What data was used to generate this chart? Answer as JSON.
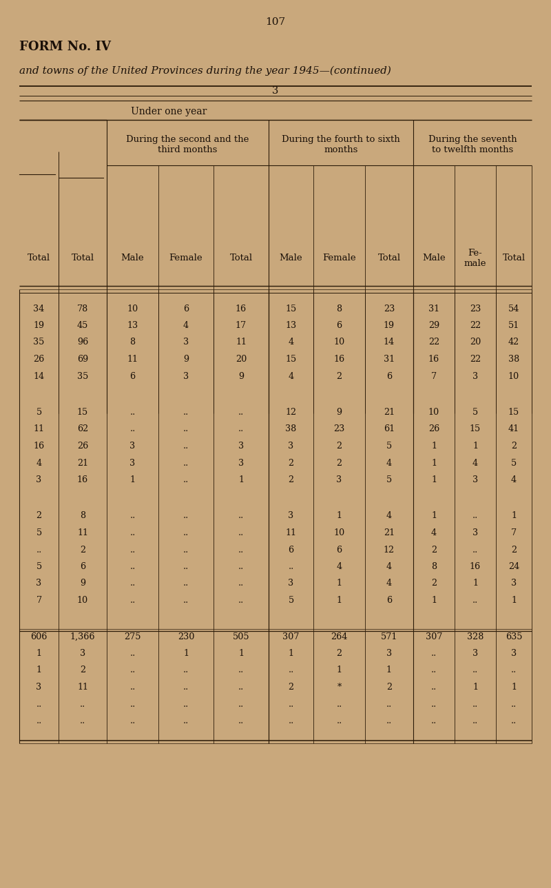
{
  "page_number": "107",
  "form_title": "FORM No. IV",
  "subtitle": "and towns of the United Provinces during the year 1945—(continued)",
  "section_number": "3",
  "section_label": "Under one year",
  "rows": [
    [
      "34",
      "78",
      "10",
      "6",
      "16",
      "15",
      "8",
      "23",
      "31",
      "23",
      "54"
    ],
    [
      "19",
      "45",
      "13",
      "4",
      "17",
      "13",
      "6",
      "19",
      "29",
      "22",
      "51"
    ],
    [
      "35",
      "96",
      "8",
      "3",
      "11",
      "4",
      "10",
      "14",
      "22",
      "20",
      "42"
    ],
    [
      "26",
      "69",
      "11",
      "9",
      "20",
      "15",
      "16",
      "31",
      "16",
      "22",
      "38"
    ],
    [
      "14",
      "35",
      "6",
      "3",
      "9",
      "4",
      "2",
      "6",
      "7",
      "3",
      "10"
    ],
    [
      "",
      "",
      "",
      "",
      "",
      "",
      "",
      "",
      "",
      "",
      ""
    ],
    [
      "5",
      "15",
      "..",
      "..",
      "..",
      "12",
      "9",
      "21",
      "10",
      "5",
      "15"
    ],
    [
      "11",
      "62",
      "..",
      "..",
      "..",
      "38",
      "23",
      "61",
      "26",
      "15",
      "41"
    ],
    [
      "16",
      "26",
      "3",
      "..",
      "3",
      "3",
      "2",
      "5",
      "1",
      "1",
      "2"
    ],
    [
      "4",
      "21",
      "3",
      "..",
      "3",
      "2",
      "2",
      "4",
      "1",
      "4",
      "5"
    ],
    [
      "3",
      "16",
      "1",
      "..",
      "1",
      "2",
      "3",
      "5",
      "1",
      "3",
      "4"
    ],
    [
      "",
      "",
      "",
      "",
      "",
      "",
      "",
      "",
      "",
      "",
      ""
    ],
    [
      "2",
      "8",
      "..",
      "..",
      "..",
      "3",
      "1",
      "4",
      "1",
      "..",
      "1"
    ],
    [
      "5",
      "11",
      "..",
      "..",
      "..",
      "11",
      "10",
      "21",
      "4",
      "3",
      "7"
    ],
    [
      "..",
      "2",
      "..",
      "..",
      "..",
      "6",
      "6",
      "12",
      "2",
      "..",
      "2"
    ],
    [
      "5",
      "6",
      "..",
      "..",
      "..",
      "..",
      "4",
      "4",
      "8",
      "16",
      "24"
    ],
    [
      "3",
      "9",
      "..",
      "..",
      "..",
      "3",
      "1",
      "4",
      "2",
      "1",
      "3"
    ],
    [
      "7",
      "10",
      "..",
      "..",
      "..",
      "5",
      "1",
      "6",
      "1",
      "..",
      "1"
    ],
    [
      "",
      "",
      "",
      "",
      "",
      "",
      "",
      "",
      "",
      "",
      ""
    ],
    [
      "606",
      "1,366",
      "275",
      "230",
      "505",
      "307",
      "264",
      "571",
      "307",
      "328",
      "635"
    ],
    [
      "1",
      "3",
      "..",
      "1",
      "1",
      "1",
      "2",
      "3",
      "..",
      "3",
      "3"
    ],
    [
      "1",
      "2",
      "..",
      "..",
      "..",
      "..",
      "1",
      "1",
      "..",
      "..",
      ".."
    ],
    [
      "3",
      "11",
      "..",
      "..",
      "..",
      "2",
      "*",
      "2",
      "..",
      "1",
      "1"
    ],
    [
      "..",
      "..",
      "..",
      "..",
      "..",
      "..",
      "..",
      "..",
      "..",
      "..",
      ".."
    ],
    [
      "..",
      "..",
      "..",
      "..",
      "..",
      "..",
      "..",
      "..",
      "..",
      "..",
      ".."
    ]
  ],
  "bg_color": "#c9a87c",
  "text_color": "#1a1008",
  "line_color": "#2a1a08"
}
